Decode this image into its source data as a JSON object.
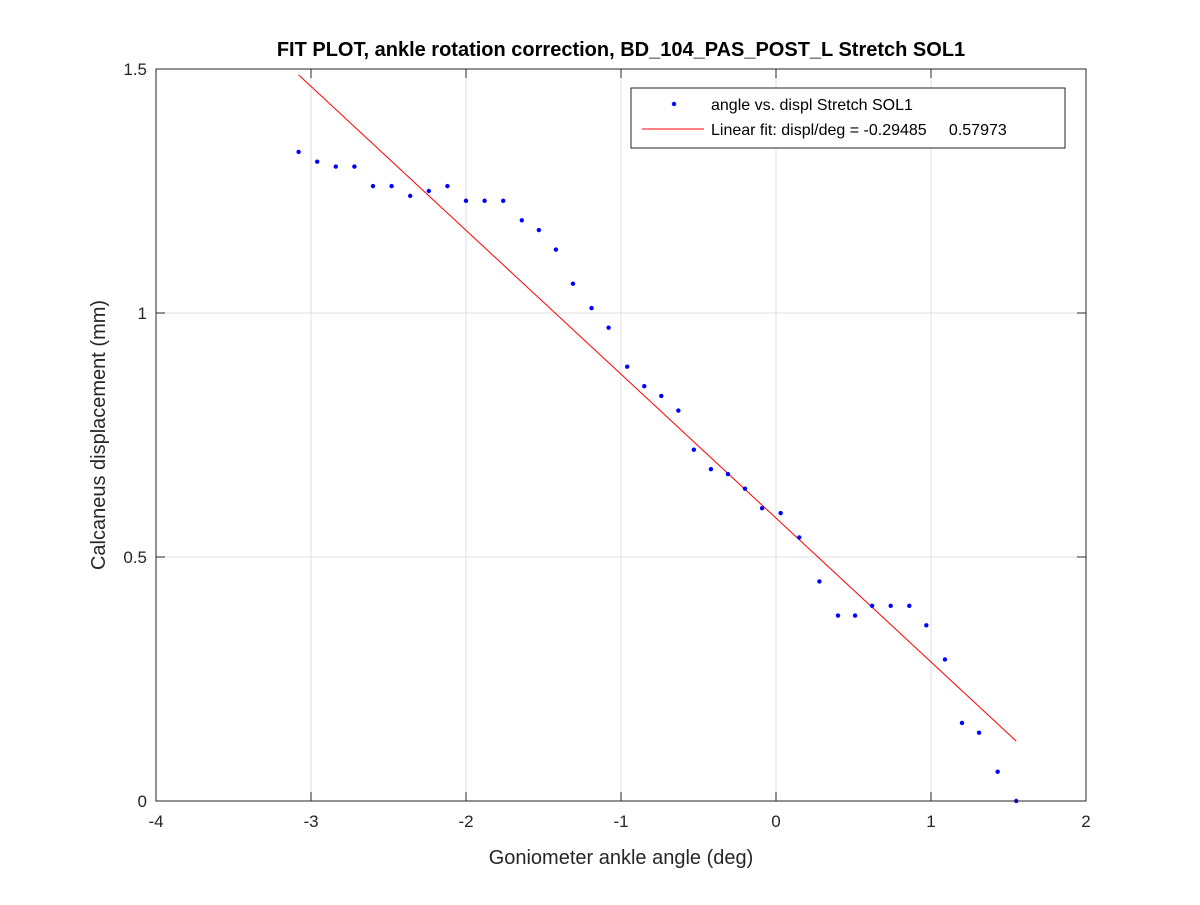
{
  "chart_data": {
    "type": "scatter",
    "title": "FIT PLOT, ankle rotation correction, BD_104_PAS_POST_L Stretch SOL1",
    "xlabel": "Goniometer ankle angle (deg)",
    "ylabel": "Calcaneus displacement (mm)",
    "xlim": [
      -4,
      2
    ],
    "ylim": [
      0,
      1.5
    ],
    "xticks": [
      -4,
      -3,
      -2,
      -1,
      0,
      1,
      2
    ],
    "xtick_labels": [
      "-4",
      "-3",
      "-2",
      "-1",
      "0",
      "1",
      "2"
    ],
    "yticks": [
      0,
      0.5,
      1,
      1.5
    ],
    "ytick_labels": [
      "0",
      "0.5",
      "1",
      "1.5"
    ],
    "grid": true,
    "legend_position": "top-right",
    "series": [
      {
        "name": "angle vs. displ Stretch SOL1",
        "type": "scatter",
        "color": "#0000ff",
        "x": [
          -3.08,
          -2.96,
          -2.84,
          -2.72,
          -2.6,
          -2.48,
          -2.36,
          -2.24,
          -2.12,
          -2.0,
          -1.88,
          -1.76,
          -1.64,
          -1.53,
          -1.42,
          -1.31,
          -1.19,
          -1.08,
          -0.96,
          -0.85,
          -0.74,
          -0.63,
          -0.53,
          -0.42,
          -0.31,
          -0.2,
          -0.09,
          0.03,
          0.15,
          0.28,
          0.4,
          0.51,
          0.62,
          0.74,
          0.86,
          0.97,
          1.09,
          1.2,
          1.31,
          1.43,
          1.55
        ],
        "y": [
          1.33,
          1.31,
          1.3,
          1.3,
          1.26,
          1.26,
          1.24,
          1.25,
          1.26,
          1.23,
          1.23,
          1.23,
          1.19,
          1.17,
          1.13,
          1.06,
          1.01,
          0.97,
          0.89,
          0.85,
          0.83,
          0.8,
          0.72,
          0.68,
          0.67,
          0.64,
          0.6,
          0.59,
          0.54,
          0.45,
          0.38,
          0.38,
          0.4,
          0.4,
          0.4,
          0.36,
          0.29,
          0.16,
          0.14,
          0.06,
          0.0
        ]
      },
      {
        "name": "Linear fit: displ/deg = -0.29485     0.57973",
        "type": "line",
        "color": "#ff0000",
        "slope": -0.29485,
        "intercept": 0.57973,
        "x": [
          -3.08,
          1.55
        ],
        "y": [
          1.4879,
          0.1227
        ]
      }
    ]
  }
}
